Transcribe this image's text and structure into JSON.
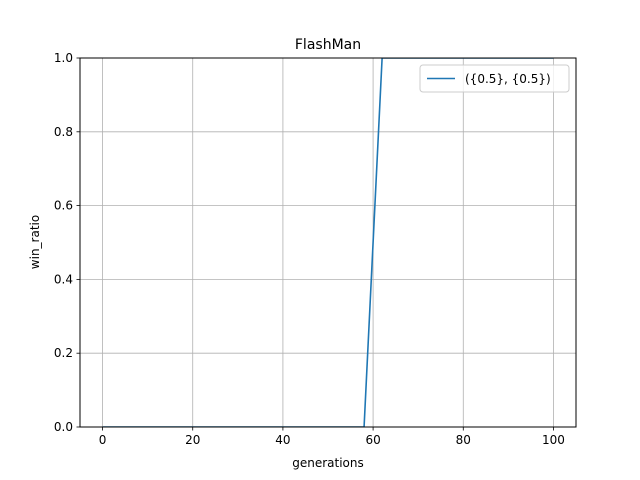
{
  "chart_data": {
    "type": "line",
    "title": "FlashMan",
    "xlabel": "generations",
    "ylabel": "win_ratio",
    "xlim": [
      -5,
      105
    ],
    "ylim": [
      0,
      1
    ],
    "xticks": [
      0,
      20,
      40,
      60,
      80,
      100
    ],
    "yticks": [
      0.0,
      0.2,
      0.4,
      0.6,
      0.8,
      1.0
    ],
    "ytick_labels": [
      "0.0",
      "0.2",
      "0.4",
      "0.6",
      "0.8",
      "1.0"
    ],
    "grid": true,
    "legend_position": "top-right",
    "series": [
      {
        "name": "({0.5}, {0.5})",
        "color": "#1f77b4",
        "x": [
          0,
          58,
          62,
          100
        ],
        "y": [
          0.0,
          0.0,
          1.0,
          1.0
        ]
      }
    ]
  }
}
